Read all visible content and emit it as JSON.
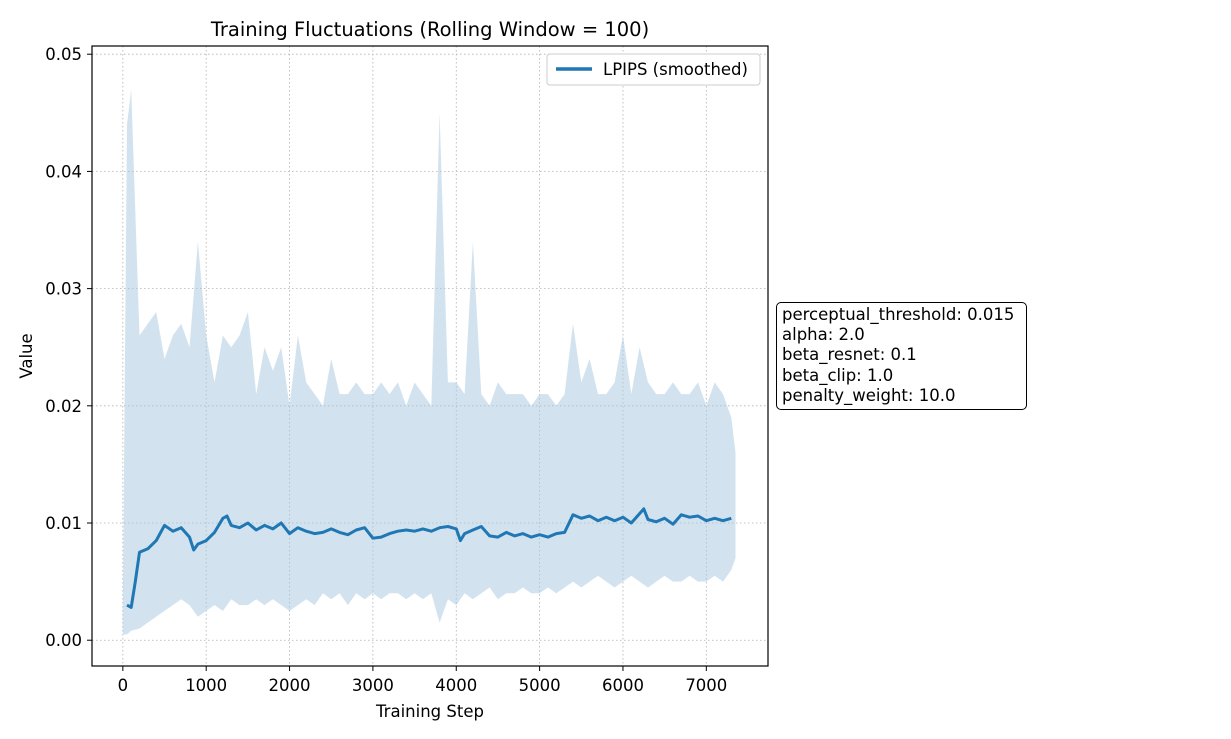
{
  "chart_data": {
    "type": "line",
    "title": "Training Fluctuations (Rolling Window = 100)",
    "xlabel": "Training Step",
    "ylabel": "Value",
    "xlim": [
      -370,
      7740
    ],
    "ylim": [
      -0.0022,
      0.0507
    ],
    "xticks": [
      0,
      1000,
      2000,
      3000,
      4000,
      5000,
      6000,
      7000
    ],
    "yticks": [
      0.0,
      0.01,
      0.02,
      0.03,
      0.04,
      0.05
    ],
    "xtick_labels": [
      "0",
      "1000",
      "2000",
      "3000",
      "4000",
      "5000",
      "6000",
      "7000"
    ],
    "ytick_labels": [
      "0.00",
      "0.01",
      "0.02",
      "0.03",
      "0.04",
      "0.05"
    ],
    "grid": true,
    "legend": {
      "placement": "top-right",
      "entries": [
        "LPIPS (smoothed)"
      ]
    },
    "series": [
      {
        "name": "LPIPS (smoothed)",
        "color": "#1f77b4",
        "x": [
          50,
          100,
          150,
          200,
          300,
          400,
          500,
          600,
          700,
          800,
          850,
          900,
          1000,
          1100,
          1200,
          1250,
          1300,
          1400,
          1500,
          1600,
          1700,
          1800,
          1900,
          2000,
          2100,
          2200,
          2300,
          2400,
          2500,
          2600,
          2700,
          2800,
          2900,
          3000,
          3100,
          3200,
          3300,
          3400,
          3500,
          3600,
          3700,
          3800,
          3900,
          4000,
          4050,
          4100,
          4200,
          4300,
          4400,
          4500,
          4600,
          4700,
          4800,
          4900,
          5000,
          5100,
          5200,
          5300,
          5400,
          5500,
          5600,
          5700,
          5800,
          5900,
          6000,
          6100,
          6200,
          6250,
          6300,
          6400,
          6500,
          6600,
          6700,
          6800,
          6900,
          7000,
          7100,
          7200,
          7300
        ],
        "y": [
          0.003,
          0.0028,
          0.005,
          0.0075,
          0.0078,
          0.0085,
          0.0098,
          0.0093,
          0.0096,
          0.0088,
          0.0077,
          0.0082,
          0.0085,
          0.0092,
          0.0104,
          0.0106,
          0.0098,
          0.0096,
          0.01,
          0.0094,
          0.0098,
          0.0095,
          0.01,
          0.0091,
          0.0096,
          0.0093,
          0.0091,
          0.0092,
          0.0095,
          0.0092,
          0.009,
          0.0094,
          0.0096,
          0.0087,
          0.0088,
          0.0091,
          0.0093,
          0.0094,
          0.0093,
          0.0095,
          0.0093,
          0.0096,
          0.0097,
          0.0095,
          0.0085,
          0.0091,
          0.0094,
          0.0097,
          0.0089,
          0.0088,
          0.0092,
          0.0089,
          0.0091,
          0.0088,
          0.009,
          0.0088,
          0.0091,
          0.0092,
          0.0107,
          0.0104,
          0.0106,
          0.0102,
          0.0105,
          0.0102,
          0.0105,
          0.01,
          0.0108,
          0.0112,
          0.0103,
          0.0101,
          0.0104,
          0.0099,
          0.0107,
          0.0105,
          0.0106,
          0.0102,
          0.0104,
          0.0102,
          0.0104
        ]
      }
    ],
    "raw_band": {
      "color": "#a6c8e0",
      "x": [
        0,
        50,
        100,
        200,
        300,
        400,
        500,
        600,
        700,
        800,
        900,
        1000,
        1100,
        1200,
        1300,
        1400,
        1500,
        1600,
        1700,
        1800,
        1900,
        2000,
        2100,
        2200,
        2300,
        2400,
        2500,
        2600,
        2700,
        2800,
        2900,
        3000,
        3100,
        3200,
        3300,
        3400,
        3500,
        3600,
        3700,
        3800,
        3900,
        4000,
        4100,
        4200,
        4300,
        4400,
        4500,
        4600,
        4700,
        4800,
        4900,
        5000,
        5100,
        5200,
        5300,
        5400,
        5500,
        5600,
        5700,
        5800,
        5900,
        6000,
        6100,
        6200,
        6300,
        6400,
        6500,
        6600,
        6700,
        6800,
        6900,
        7000,
        7100,
        7200,
        7300,
        7350
      ],
      "upper": [
        0.003,
        0.044,
        0.047,
        0.026,
        0.027,
        0.028,
        0.024,
        0.026,
        0.027,
        0.025,
        0.034,
        0.026,
        0.022,
        0.026,
        0.025,
        0.026,
        0.028,
        0.021,
        0.025,
        0.023,
        0.025,
        0.02,
        0.026,
        0.022,
        0.021,
        0.02,
        0.024,
        0.021,
        0.021,
        0.022,
        0.021,
        0.021,
        0.022,
        0.021,
        0.022,
        0.02,
        0.022,
        0.021,
        0.02,
        0.045,
        0.022,
        0.022,
        0.021,
        0.034,
        0.021,
        0.02,
        0.022,
        0.021,
        0.021,
        0.021,
        0.02,
        0.021,
        0.021,
        0.02,
        0.021,
        0.027,
        0.022,
        0.024,
        0.021,
        0.021,
        0.022,
        0.026,
        0.021,
        0.025,
        0.022,
        0.021,
        0.021,
        0.022,
        0.021,
        0.021,
        0.022,
        0.02,
        0.022,
        0.021,
        0.019,
        0.016
      ],
      "lower": [
        0.0005,
        0.0005,
        0.0008,
        0.001,
        0.0015,
        0.002,
        0.0025,
        0.003,
        0.0035,
        0.003,
        0.002,
        0.0025,
        0.003,
        0.0025,
        0.0035,
        0.003,
        0.003,
        0.0035,
        0.003,
        0.0035,
        0.003,
        0.0025,
        0.003,
        0.0035,
        0.003,
        0.004,
        0.0035,
        0.004,
        0.003,
        0.004,
        0.0035,
        0.004,
        0.0035,
        0.004,
        0.004,
        0.0035,
        0.004,
        0.0035,
        0.004,
        0.0015,
        0.0035,
        0.003,
        0.004,
        0.0035,
        0.004,
        0.0045,
        0.0035,
        0.004,
        0.004,
        0.0045,
        0.004,
        0.004,
        0.0045,
        0.004,
        0.0045,
        0.005,
        0.0045,
        0.005,
        0.0055,
        0.005,
        0.0045,
        0.005,
        0.0055,
        0.005,
        0.0045,
        0.005,
        0.0055,
        0.005,
        0.005,
        0.0055,
        0.005,
        0.005,
        0.0055,
        0.005,
        0.006,
        0.007
      ]
    }
  },
  "params_box": {
    "lines": [
      "perceptual_threshold: 0.015",
      "alpha: 2.0",
      "beta_resnet: 0.1",
      "beta_clip: 1.0",
      "penalty_weight: 10.0"
    ]
  }
}
